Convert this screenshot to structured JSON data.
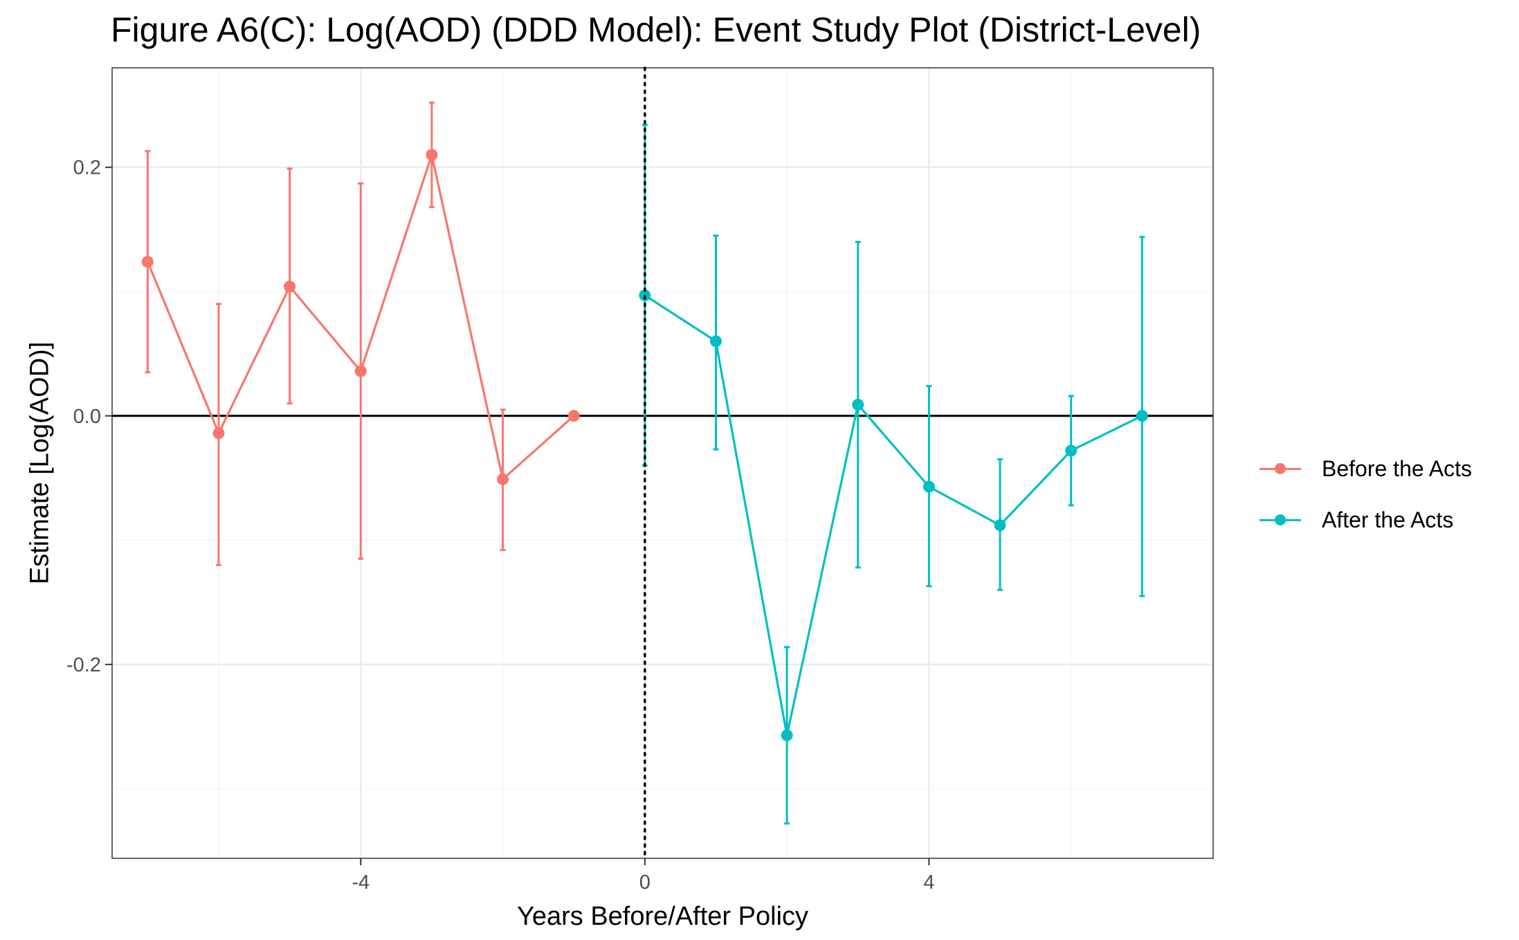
{
  "title": "Figure A6(C): Log(AOD) (DDD Model): Event Study Plot (District-Level)",
  "chart_data": {
    "type": "line",
    "title": "Figure A6(C): Log(AOD) (DDD Model): Event Study Plot (District-Level)",
    "xlabel": "Years Before/After Policy",
    "ylabel": "Estimate [Log(AOD)]",
    "xlim": [
      -7.5,
      8.0
    ],
    "ylim": [
      -0.356,
      0.28
    ],
    "x_ticks": [
      -4,
      0,
      4
    ],
    "x_tick_labels": [
      "-4",
      "0",
      "4"
    ],
    "y_ticks": [
      -0.2,
      0.0,
      0.2
    ],
    "y_tick_labels": [
      "-0.2",
      "0.0",
      "0.2"
    ],
    "grid": true,
    "legend_position": "right",
    "reference_lines": {
      "horizontal_y": 0,
      "vertical_x": 0
    },
    "series": [
      {
        "name": "Before the Acts",
        "color": "#F8766D",
        "x": [
          -7,
          -6,
          -5,
          -4,
          -3,
          -2,
          -1
        ],
        "y": [
          0.124,
          -0.014,
          0.104,
          0.036,
          0.21,
          -0.051,
          0.0
        ],
        "ci_low": [
          0.035,
          -0.12,
          0.01,
          -0.115,
          0.168,
          -0.108,
          0.0
        ],
        "ci_high": [
          0.213,
          0.09,
          0.199,
          0.187,
          0.252,
          0.005,
          0.0
        ]
      },
      {
        "name": "After the Acts",
        "color": "#00BFC4",
        "x": [
          0,
          1,
          2,
          3,
          4,
          5,
          6,
          7
        ],
        "y": [
          0.097,
          0.06,
          -0.257,
          0.009,
          -0.057,
          -0.088,
          -0.028,
          0.0
        ],
        "ci_low": [
          -0.04,
          -0.027,
          -0.328,
          -0.122,
          -0.137,
          -0.14,
          -0.072,
          -0.145
        ],
        "ci_high": [
          0.234,
          0.145,
          -0.186,
          0.14,
          0.024,
          -0.035,
          0.016,
          0.144
        ]
      }
    ]
  }
}
